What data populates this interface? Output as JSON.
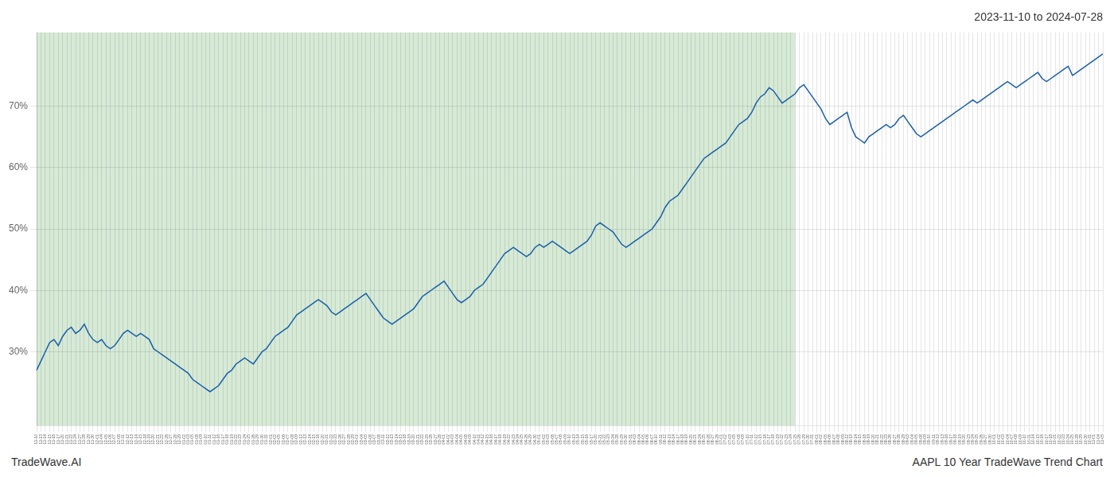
{
  "chart_data": {
    "type": "line",
    "title": "2023-11-10 to 2024-07-28",
    "annotations": [
      "TradeWave.AI",
      "AAPL 10 Year TradeWave Trend Chart"
    ],
    "color": "#1a5fa8",
    "grid": true,
    "ylim": [
      18,
      82
    ],
    "yticks": [
      {
        "value": 30,
        "label": "30%"
      },
      {
        "value": 40,
        "label": "40%"
      },
      {
        "value": 50,
        "label": "50%"
      },
      {
        "value": 60,
        "label": "60%"
      },
      {
        "value": 70,
        "label": "70%"
      }
    ],
    "shaded_region": {
      "from": "11-10",
      "to": "07-25",
      "color": "#d6ead6"
    },
    "categories": [
      "11-10",
      "11-13",
      "11-14",
      "11-15",
      "11-16",
      "11-17",
      "11-20",
      "11-21",
      "11-22",
      "11-24",
      "11-27",
      "11-28",
      "11-29",
      "11-30",
      "12-01",
      "12-04",
      "12-05",
      "12-06",
      "12-07",
      "12-08",
      "12-11",
      "12-12",
      "12-13",
      "12-14",
      "12-15",
      "12-18",
      "12-19",
      "12-20",
      "12-21",
      "12-22",
      "12-26",
      "12-27",
      "12-28",
      "12-29",
      "01-02",
      "01-03",
      "01-05",
      "01-08",
      "01-09",
      "01-10",
      "01-11",
      "01-12",
      "01-16",
      "01-17",
      "01-18",
      "01-19",
      "01-22",
      "01-23",
      "01-24",
      "01-25",
      "01-26",
      "01-29",
      "01-30",
      "01-31",
      "02-01",
      "02-02",
      "02-05",
      "02-06",
      "02-07",
      "02-08",
      "02-09",
      "02-12",
      "02-13",
      "02-14",
      "02-15",
      "02-16",
      "02-20",
      "02-21",
      "02-22",
      "02-23",
      "02-26",
      "02-27",
      "02-28",
      "02-29",
      "03-01",
      "03-04",
      "03-05",
      "03-06",
      "03-07",
      "03-08",
      "03-11",
      "03-12",
      "03-13",
      "03-14",
      "03-15",
      "03-18",
      "03-19",
      "03-20",
      "03-21",
      "03-22",
      "03-25",
      "03-26",
      "03-27",
      "03-28",
      "04-01",
      "04-02",
      "04-03",
      "04-04",
      "04-05",
      "04-08",
      "04-09",
      "04-10",
      "04-11",
      "04-12",
      "04-15",
      "04-16",
      "04-17",
      "04-18",
      "04-19",
      "04-22",
      "04-23",
      "04-24",
      "04-25",
      "04-26",
      "04-29",
      "04-30",
      "05-01",
      "05-02",
      "05-03",
      "05-06",
      "05-07",
      "05-08",
      "05-09",
      "05-10",
      "05-13",
      "05-14",
      "05-15",
      "05-16",
      "05-17",
      "05-20",
      "05-21",
      "05-22",
      "05-23",
      "05-24",
      "05-28",
      "05-29",
      "05-30",
      "05-31",
      "06-03",
      "06-04",
      "06-05",
      "06-06",
      "06-07",
      "06-10",
      "06-11",
      "06-12",
      "06-13",
      "06-14",
      "06-17",
      "06-18",
      "06-19",
      "06-20",
      "06-21",
      "06-24",
      "06-25",
      "06-26",
      "06-27",
      "06-28",
      "07-01",
      "07-02",
      "07-03",
      "07-05",
      "07-08",
      "07-09",
      "07-10",
      "07-11",
      "07-12",
      "07-15",
      "07-16",
      "07-17",
      "07-18",
      "07-19",
      "07-22",
      "07-23",
      "07-24",
      "07-25",
      "07-26",
      "07-29",
      "07-30",
      "07-31",
      "08-01",
      "08-02",
      "08-05",
      "08-06",
      "08-07",
      "08-08",
      "08-09",
      "08-12",
      "08-13",
      "08-14",
      "08-15",
      "08-16",
      "08-19",
      "08-20",
      "08-21",
      "08-22",
      "08-23",
      "08-26",
      "08-27",
      "08-28",
      "08-29",
      "09-03",
      "09-04",
      "09-05",
      "09-06",
      "09-09",
      "09-10",
      "09-11",
      "09-12",
      "09-13",
      "09-16",
      "09-17",
      "09-18",
      "09-19",
      "09-20",
      "09-23",
      "09-24",
      "09-25",
      "09-26",
      "09-27",
      "09-30",
      "10-01",
      "10-02",
      "10-03",
      "10-04",
      "10-07",
      "10-08",
      "10-09",
      "10-10",
      "10-11",
      "10-14",
      "10-15",
      "10-16",
      "10-17",
      "10-18",
      "10-21",
      "10-22",
      "10-23",
      "10-24",
      "10-25",
      "10-28",
      "10-29",
      "10-30",
      "10-31",
      "11-01",
      "11-04",
      "11-05"
    ],
    "values": [
      27.0,
      28.5,
      30.0,
      31.5,
      32.0,
      31.0,
      32.5,
      33.5,
      34.0,
      33.0,
      33.5,
      34.5,
      33.0,
      32.0,
      31.5,
      32.0,
      31.0,
      30.5,
      31.0,
      32.0,
      33.0,
      33.5,
      33.0,
      32.5,
      33.0,
      32.5,
      32.0,
      30.5,
      30.0,
      29.5,
      29.0,
      28.5,
      28.0,
      27.5,
      27.0,
      26.5,
      25.5,
      25.0,
      24.5,
      24.0,
      23.5,
      24.0,
      24.5,
      25.5,
      26.5,
      27.0,
      28.0,
      28.5,
      29.0,
      28.5,
      28.0,
      29.0,
      30.0,
      30.5,
      31.5,
      32.5,
      33.0,
      33.5,
      34.0,
      35.0,
      36.0,
      36.5,
      37.0,
      37.5,
      38.0,
      38.5,
      38.0,
      37.5,
      36.5,
      36.0,
      36.5,
      37.0,
      37.5,
      38.0,
      38.5,
      39.0,
      39.5,
      38.5,
      37.5,
      36.5,
      35.5,
      35.0,
      34.5,
      35.0,
      35.5,
      36.0,
      36.5,
      37.0,
      38.0,
      39.0,
      39.5,
      40.0,
      40.5,
      41.0,
      41.5,
      40.5,
      39.5,
      38.5,
      38.0,
      38.5,
      39.0,
      40.0,
      40.5,
      41.0,
      42.0,
      43.0,
      44.0,
      45.0,
      46.0,
      46.5,
      47.0,
      46.5,
      46.0,
      45.5,
      46.0,
      47.0,
      47.5,
      47.0,
      47.5,
      48.0,
      47.5,
      47.0,
      46.5,
      46.0,
      46.5,
      47.0,
      47.5,
      48.0,
      49.0,
      50.5,
      51.0,
      50.5,
      50.0,
      49.5,
      48.5,
      47.5,
      47.0,
      47.5,
      48.0,
      48.5,
      49.0,
      49.5,
      50.0,
      51.0,
      52.0,
      53.5,
      54.5,
      55.0,
      55.5,
      56.5,
      57.5,
      58.5,
      59.5,
      60.5,
      61.5,
      62.0,
      62.5,
      63.0,
      63.5,
      64.0,
      65.0,
      66.0,
      67.0,
      67.5,
      68.0,
      69.0,
      70.5,
      71.5,
      72.0,
      73.0,
      72.5,
      71.5,
      70.5,
      71.0,
      71.5,
      72.0,
      73.0,
      73.5,
      72.5,
      71.5,
      70.5,
      69.5,
      68.0,
      67.0,
      67.5,
      68.0,
      68.5,
      69.0,
      66.5,
      65.0,
      64.5,
      64.0,
      65.0,
      65.5,
      66.0,
      66.5,
      67.0,
      66.5,
      67.0,
      68.0,
      68.5,
      67.5,
      66.5,
      65.5,
      65.0,
      65.5,
      66.0,
      66.5,
      67.0,
      67.5,
      68.0,
      68.5,
      69.0,
      69.5,
      70.0,
      70.5,
      71.0,
      70.5,
      71.0,
      71.5,
      72.0,
      72.5,
      73.0,
      73.5,
      74.0,
      73.5,
      73.0,
      73.5,
      74.0,
      74.5,
      75.0,
      75.5,
      74.5,
      74.0,
      74.5,
      75.0,
      75.5,
      76.0,
      76.5,
      75.0,
      75.5,
      76.0,
      76.5,
      77.0,
      77.5,
      78.0,
      78.5
    ]
  }
}
